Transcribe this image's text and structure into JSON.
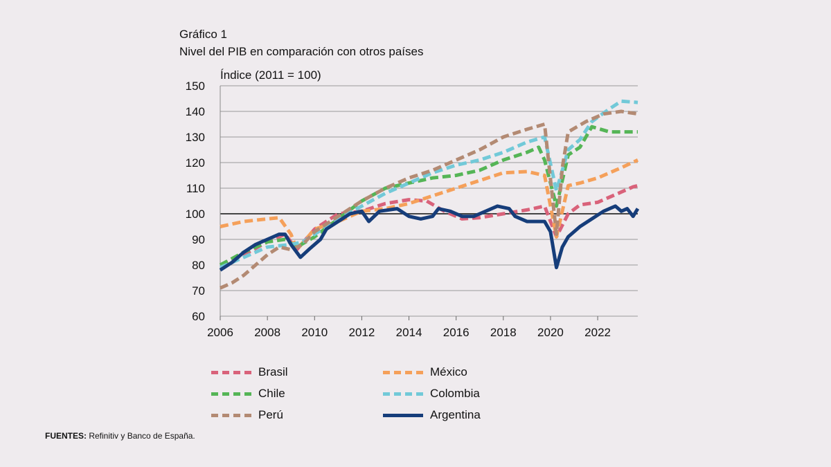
{
  "header": {
    "figure_label": "Gráfico 1",
    "title": "Nivel del PIB en comparación con otros países"
  },
  "source": {
    "label": "FUENTES:",
    "text": "Refinitiv y Banco de España."
  },
  "chart_data": {
    "type": "line",
    "title": "Nivel del PIB en comparación con otros países",
    "ylabel": "Índice (2011 = 100)",
    "xlabel": "",
    "xlim": [
      2006,
      2023.7
    ],
    "ylim": [
      60,
      150
    ],
    "yticks": [
      60,
      70,
      80,
      90,
      100,
      110,
      120,
      130,
      140,
      150
    ],
    "xticks": [
      2006,
      2008,
      2010,
      2012,
      2014,
      2016,
      2018,
      2020,
      2022
    ],
    "xtick_labels": [
      "2006",
      "2008",
      "2010",
      "2012",
      "2014",
      "2016",
      "2018",
      "2020",
      "2022"
    ],
    "grid": true,
    "reference_line": 100,
    "legend_position": "bottom",
    "colors": {
      "Brasil": "#d9627a",
      "México": "#f5a05a",
      "Chile": "#55b556",
      "Colombia": "#72c9d8",
      "Perú": "#b38a73",
      "Argentina": "#163d7a",
      "grid": "#999999",
      "reference": "#444444"
    },
    "series": [
      {
        "name": "Brasil",
        "style": "dashed",
        "points": [
          [
            2006.0,
            80
          ],
          [
            2007.0,
            84
          ],
          [
            2008.0,
            89
          ],
          [
            2008.75,
            92
          ],
          [
            2009.25,
            86
          ],
          [
            2010.0,
            94
          ],
          [
            2011.0,
            100
          ],
          [
            2012.0,
            101
          ],
          [
            2013.0,
            104
          ],
          [
            2014.0,
            105.5
          ],
          [
            2014.75,
            105
          ],
          [
            2015.5,
            101
          ],
          [
            2016.25,
            98
          ],
          [
            2017.0,
            98.5
          ],
          [
            2018.0,
            100
          ],
          [
            2019.0,
            101.5
          ],
          [
            2019.75,
            103
          ],
          [
            2020.25,
            91
          ],
          [
            2020.75,
            100
          ],
          [
            2021.25,
            103.5
          ],
          [
            2022.0,
            104.5
          ],
          [
            2022.75,
            107.5
          ],
          [
            2023.5,
            110.5
          ],
          [
            2023.7,
            111
          ]
        ]
      },
      {
        "name": "México",
        "style": "dashed",
        "points": [
          [
            2006.0,
            95
          ],
          [
            2007.0,
            97
          ],
          [
            2008.0,
            98
          ],
          [
            2008.5,
            98.5
          ],
          [
            2009.0,
            92
          ],
          [
            2009.25,
            86
          ],
          [
            2010.0,
            94
          ],
          [
            2011.0,
            97
          ],
          [
            2012.0,
            101
          ],
          [
            2013.0,
            102
          ],
          [
            2014.0,
            104
          ],
          [
            2015.0,
            107
          ],
          [
            2016.0,
            110
          ],
          [
            2017.0,
            113
          ],
          [
            2018.0,
            116
          ],
          [
            2019.0,
            116.5
          ],
          [
            2019.75,
            115
          ],
          [
            2020.25,
            91
          ],
          [
            2020.75,
            111
          ],
          [
            2021.25,
            112
          ],
          [
            2022.0,
            114
          ],
          [
            2023.0,
            118
          ],
          [
            2023.7,
            121
          ]
        ]
      },
      {
        "name": "Chile",
        "style": "dashed",
        "points": [
          [
            2006.0,
            80
          ],
          [
            2007.0,
            85
          ],
          [
            2008.0,
            89
          ],
          [
            2008.75,
            90
          ],
          [
            2009.25,
            87
          ],
          [
            2010.0,
            91
          ],
          [
            2011.0,
            98
          ],
          [
            2012.0,
            105
          ],
          [
            2013.0,
            110
          ],
          [
            2014.0,
            112
          ],
          [
            2015.0,
            114
          ],
          [
            2016.0,
            115
          ],
          [
            2017.0,
            117
          ],
          [
            2018.0,
            121
          ],
          [
            2019.0,
            124
          ],
          [
            2019.5,
            126
          ],
          [
            2019.75,
            121
          ],
          [
            2020.25,
            103
          ],
          [
            2020.75,
            123
          ],
          [
            2021.25,
            126
          ],
          [
            2021.75,
            134
          ],
          [
            2022.5,
            132
          ],
          [
            2023.0,
            132
          ],
          [
            2023.7,
            132
          ]
        ]
      },
      {
        "name": "Colombia",
        "style": "dashed",
        "points": [
          [
            2006.0,
            79
          ],
          [
            2007.0,
            83
          ],
          [
            2008.0,
            87
          ],
          [
            2009.0,
            88
          ],
          [
            2009.5,
            89
          ],
          [
            2010.0,
            92
          ],
          [
            2011.0,
            98
          ],
          [
            2012.0,
            103
          ],
          [
            2013.0,
            108
          ],
          [
            2014.0,
            112
          ],
          [
            2015.0,
            116
          ],
          [
            2016.0,
            119
          ],
          [
            2017.0,
            121
          ],
          [
            2018.0,
            124
          ],
          [
            2019.0,
            128
          ],
          [
            2019.75,
            130
          ],
          [
            2020.25,
            109
          ],
          [
            2020.75,
            125
          ],
          [
            2021.25,
            129
          ],
          [
            2021.75,
            136
          ],
          [
            2022.5,
            141
          ],
          [
            2023.0,
            144
          ],
          [
            2023.7,
            143.5
          ]
        ]
      },
      {
        "name": "Perú",
        "style": "dashed",
        "points": [
          [
            2006.0,
            71
          ],
          [
            2006.5,
            73
          ],
          [
            2007.0,
            76
          ],
          [
            2007.5,
            80
          ],
          [
            2008.0,
            84
          ],
          [
            2008.5,
            87
          ],
          [
            2009.0,
            86
          ],
          [
            2009.5,
            88
          ],
          [
            2010.0,
            93
          ],
          [
            2011.0,
            99
          ],
          [
            2012.0,
            105
          ],
          [
            2013.0,
            110
          ],
          [
            2014.0,
            114
          ],
          [
            2015.0,
            117
          ],
          [
            2016.0,
            121
          ],
          [
            2017.0,
            125
          ],
          [
            2018.0,
            130
          ],
          [
            2019.0,
            133
          ],
          [
            2019.75,
            135
          ],
          [
            2020.25,
            92
          ],
          [
            2020.5,
            118
          ],
          [
            2020.75,
            132
          ],
          [
            2021.5,
            136
          ],
          [
            2022.25,
            139
          ],
          [
            2023.0,
            140
          ],
          [
            2023.7,
            139
          ]
        ]
      },
      {
        "name": "Argentina",
        "style": "solid",
        "points": [
          [
            2006.0,
            78
          ],
          [
            2006.5,
            81
          ],
          [
            2007.0,
            85
          ],
          [
            2007.5,
            88
          ],
          [
            2008.0,
            90
          ],
          [
            2008.5,
            92
          ],
          [
            2008.75,
            92
          ],
          [
            2009.0,
            88
          ],
          [
            2009.4,
            83
          ],
          [
            2009.75,
            86
          ],
          [
            2010.25,
            90
          ],
          [
            2010.5,
            94
          ],
          [
            2011.0,
            97
          ],
          [
            2011.5,
            100
          ],
          [
            2012.0,
            101
          ],
          [
            2012.3,
            97
          ],
          [
            2012.75,
            101
          ],
          [
            2013.5,
            102
          ],
          [
            2014.0,
            99
          ],
          [
            2014.5,
            98
          ],
          [
            2015.0,
            99
          ],
          [
            2015.25,
            102
          ],
          [
            2015.75,
            101
          ],
          [
            2016.25,
            99
          ],
          [
            2016.75,
            99
          ],
          [
            2017.25,
            101
          ],
          [
            2017.75,
            103
          ],
          [
            2018.25,
            102
          ],
          [
            2018.5,
            99
          ],
          [
            2019.0,
            97
          ],
          [
            2019.75,
            97
          ],
          [
            2020.0,
            93
          ],
          [
            2020.25,
            79
          ],
          [
            2020.5,
            87
          ],
          [
            2020.75,
            91
          ],
          [
            2021.25,
            95
          ],
          [
            2021.75,
            98
          ],
          [
            2022.25,
            101
          ],
          [
            2022.75,
            103
          ],
          [
            2023.0,
            101
          ],
          [
            2023.25,
            102
          ],
          [
            2023.5,
            99
          ],
          [
            2023.7,
            102
          ]
        ]
      }
    ]
  }
}
